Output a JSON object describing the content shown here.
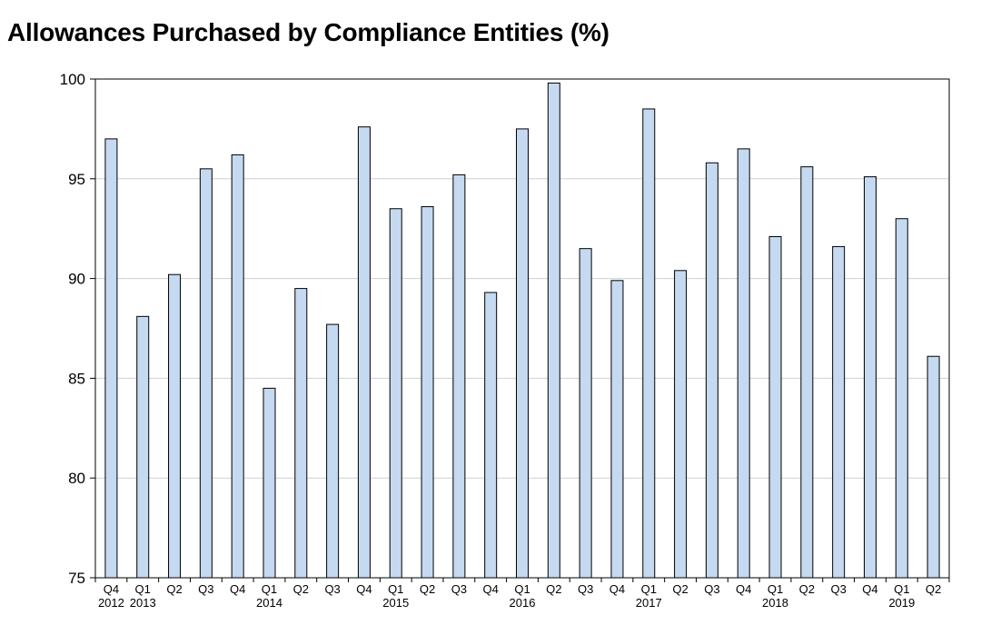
{
  "chart_data": {
    "type": "bar",
    "title": "Allowances Purchased by Compliance Entities (%)",
    "xlabel": "",
    "ylabel": "",
    "ylim": [
      75,
      100
    ],
    "yticks": [
      "75",
      "80",
      "85",
      "90",
      "95",
      "100"
    ],
    "grid": "horizontal",
    "legend": "none",
    "bar_color": "#c5d9f1",
    "bar_outline": "#000000",
    "grid_color": "#d0d0d0",
    "categories": [
      "Q4",
      "Q1",
      "Q2",
      "Q3",
      "Q4",
      "Q1",
      "Q2",
      "Q3",
      "Q4",
      "Q1",
      "Q2",
      "Q3",
      "Q4",
      "Q1",
      "Q2",
      "Q3",
      "Q4",
      "Q1",
      "Q2",
      "Q3",
      "Q4",
      "Q1",
      "Q2",
      "Q3",
      "Q4",
      "Q1",
      "Q2"
    ],
    "year_labels": [
      {
        "index": 0,
        "label": "2012"
      },
      {
        "index": 1,
        "label": "2013"
      },
      {
        "index": 5,
        "label": "2014"
      },
      {
        "index": 9,
        "label": "2015"
      },
      {
        "index": 13,
        "label": "2016"
      },
      {
        "index": 17,
        "label": "2017"
      },
      {
        "index": 21,
        "label": "2018"
      },
      {
        "index": 25,
        "label": "2019"
      }
    ],
    "values": [
      97.0,
      88.1,
      90.2,
      95.5,
      96.2,
      84.5,
      89.5,
      87.7,
      97.6,
      93.5,
      93.6,
      95.2,
      89.3,
      97.5,
      99.8,
      91.5,
      89.9,
      98.5,
      90.4,
      95.8,
      96.5,
      92.1,
      95.6,
      91.6,
      95.1,
      93.0,
      86.1
    ]
  }
}
